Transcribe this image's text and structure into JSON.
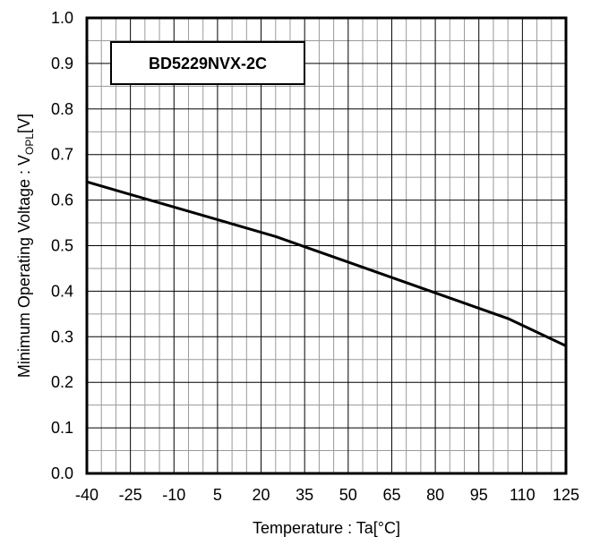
{
  "chart_data": {
    "type": "line",
    "annotation": "BD5229NVX-2C",
    "xlabel": "Temperature : Ta[°C]",
    "ylabel": {
      "prefix": "Minimum Operating Voltage : V",
      "subscript": "OPL",
      "suffix": "[V]"
    },
    "xlim": [
      -40,
      125
    ],
    "ylim": [
      0.0,
      1.0
    ],
    "x_ticks": [
      -40,
      -25,
      -10,
      5,
      20,
      35,
      50,
      65,
      80,
      95,
      110,
      125
    ],
    "x_tick_labels": [
      "-40",
      "-25",
      "-10",
      "5",
      "20",
      "35",
      "50",
      "65",
      "80",
      "95",
      "110",
      "125"
    ],
    "y_ticks": [
      0.0,
      0.1,
      0.2,
      0.3,
      0.4,
      0.5,
      0.6,
      0.7,
      0.8,
      0.9,
      1.0
    ],
    "y_tick_labels": [
      "0.0",
      "0.1",
      "0.2",
      "0.3",
      "0.4",
      "0.5",
      "0.6",
      "0.7",
      "0.8",
      "0.9",
      "1.0"
    ],
    "grid": true,
    "minor_grid_divisions": {
      "x": 3,
      "y": 2
    },
    "series": [
      {
        "x": [
          -40,
          25,
          105,
          125
        ],
        "y": [
          0.64,
          0.52,
          0.34,
          0.28
        ]
      }
    ],
    "colors": {
      "line": "#000000",
      "grid": "#9a9a9a",
      "major_grid": "#000000"
    }
  }
}
